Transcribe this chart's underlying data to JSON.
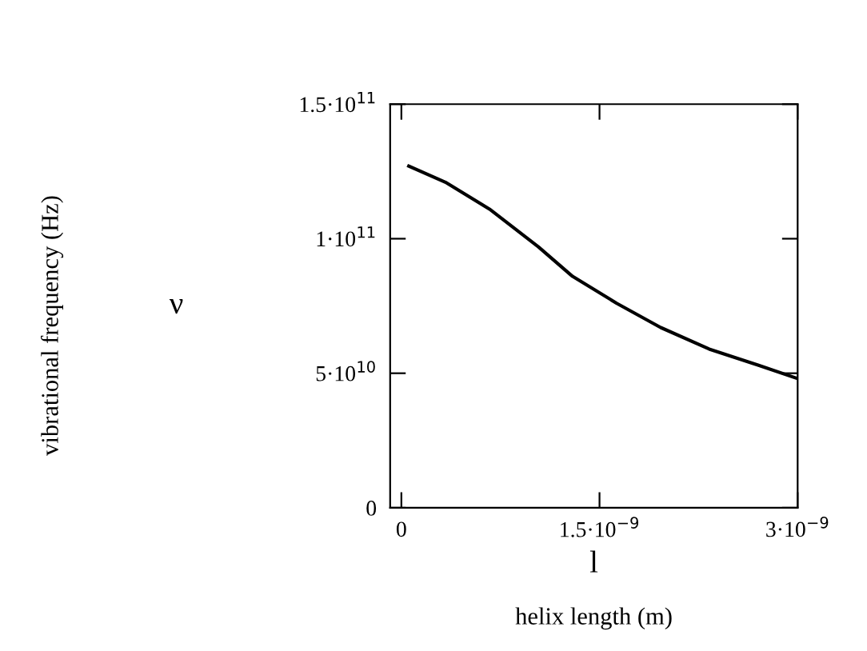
{
  "chart_data": {
    "type": "line",
    "xlabel": "l",
    "ylabel": "ν",
    "annotations": [
      "vibrational frequency (Hz)",
      "helix length (m)"
    ],
    "series": [
      {
        "color": "#000000",
        "x": [
          5.6e-11,
          3.33e-10,
          6.67e-10,
          1.037e-09,
          1.296e-09,
          1.63e-09,
          1.963e-09,
          2.33e-09,
          2.7e-09,
          3e-09
        ],
        "values": [
          127000000000.0,
          121000000000.0,
          111000000000.0,
          97000000000.0,
          86000000000.0,
          76000000000.0,
          67000000000.0,
          59000000000.0,
          53000000000.0,
          48000000000.0
        ]
      }
    ],
    "xlim": [
      -8.5e-11,
      3e-09
    ],
    "ylim": [
      0,
      150000000000.0
    ],
    "xticks": [
      0,
      {
        "value": 1.5e-09,
        "label": "1.5·10$^{−9}$"
      },
      {
        "value": 3e-09,
        "label": "3·10$^{−9}$"
      }
    ],
    "yticks": [
      0,
      {
        "value": 50000000000.0,
        "label": "5·10$^{10}$"
      },
      {
        "value": 100000000000.0,
        "label": "1·10$^{11}$"
      },
      {
        "value": 150000000000.0,
        "label": "1.5·10$^{11}$"
      }
    ],
    "grid": false,
    "legend": false,
    "marker": "none",
    "line_style": "solid"
  }
}
